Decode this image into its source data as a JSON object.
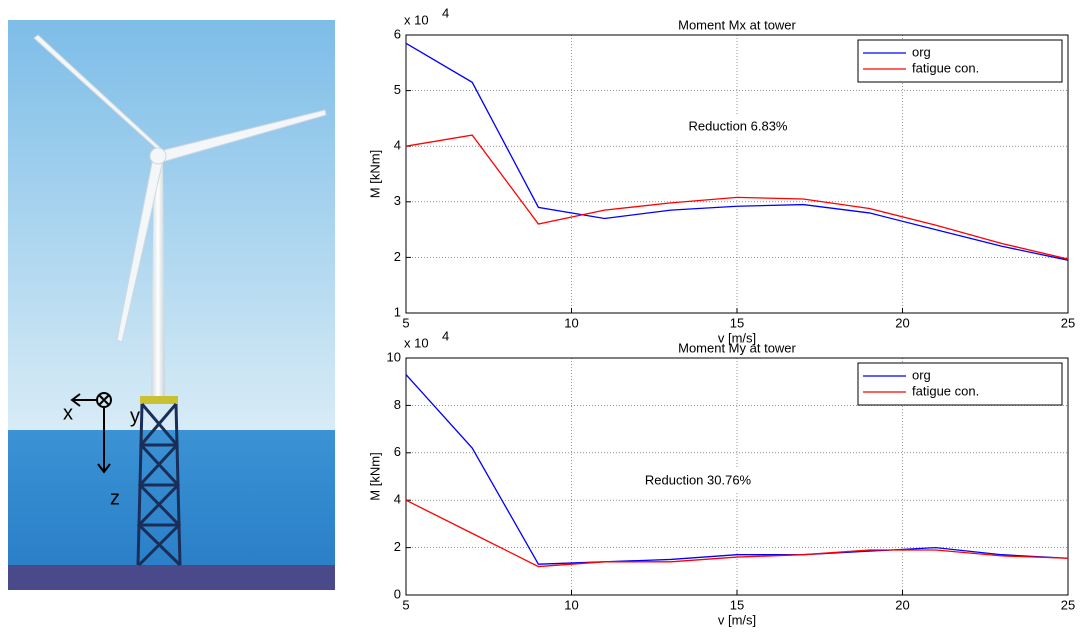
{
  "illustration": {
    "axis_labels": [
      "x",
      "y",
      "z"
    ]
  },
  "chart_data": [
    {
      "type": "line",
      "title": "Moment Mx at tower",
      "xlabel": "v [m/s]",
      "ylabel": "M [kNm]",
      "y_scale_label": "x 10",
      "y_scale_power": 4,
      "x": [
        5,
        7,
        9,
        11,
        13,
        15,
        17,
        19,
        21,
        23,
        25
      ],
      "series": [
        {
          "name": "org",
          "color": "#0000ff",
          "values": [
            5.85,
            5.15,
            2.9,
            2.7,
            2.85,
            2.92,
            2.95,
            2.8,
            2.5,
            2.2,
            1.95
          ]
        },
        {
          "name": "fatigue con.",
          "color": "#ff0000",
          "values": [
            4.0,
            4.2,
            2.6,
            2.85,
            2.98,
            3.08,
            3.05,
            2.88,
            2.58,
            2.25,
            1.97
          ]
        }
      ],
      "xlim": [
        5,
        25
      ],
      "xticks": [
        5,
        10,
        15,
        20,
        25
      ],
      "ylim": [
        1,
        6
      ],
      "yticks": [
        1,
        2,
        3,
        4,
        5,
        6
      ],
      "grid": true,
      "legend": "upper right",
      "annotation": "Reduction 6.83%"
    },
    {
      "type": "line",
      "title": "Moment My at tower",
      "xlabel": "v [m/s]",
      "ylabel": "M [kNm]",
      "y_scale_label": "x 10",
      "y_scale_power": 4,
      "x": [
        5,
        7,
        9,
        11,
        13,
        15,
        17,
        19,
        21,
        23,
        25
      ],
      "series": [
        {
          "name": "org",
          "color": "#0000ff",
          "values": [
            9.3,
            6.2,
            1.3,
            1.4,
            1.5,
            1.7,
            1.7,
            1.85,
            2.0,
            1.7,
            1.55
          ]
        },
        {
          "name": "fatigue con.",
          "color": "#ff0000",
          "values": [
            4.0,
            2.6,
            1.2,
            1.4,
            1.4,
            1.6,
            1.7,
            1.9,
            1.9,
            1.65,
            1.55
          ]
        }
      ],
      "xlim": [
        5,
        25
      ],
      "xticks": [
        5,
        10,
        15,
        20,
        25
      ],
      "ylim": [
        0,
        10
      ],
      "yticks": [
        0,
        2,
        4,
        6,
        8,
        10
      ],
      "grid": true,
      "legend": "upper right",
      "annotation": "Reduction 30.76%"
    }
  ]
}
